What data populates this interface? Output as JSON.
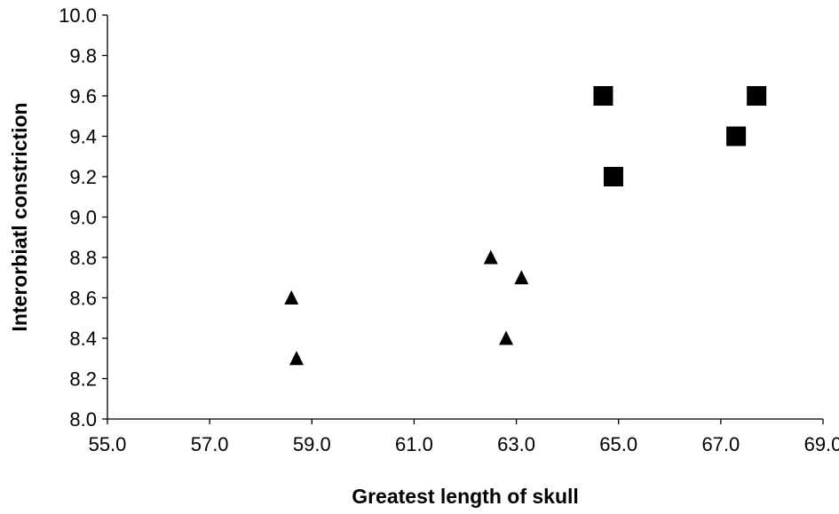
{
  "chart_data": {
    "type": "scatter",
    "xlabel": "Greatest length of skull",
    "ylabel": "Interorbiatl constriction",
    "xlim": [
      55.0,
      69.0
    ],
    "ylim": [
      8.0,
      10.0
    ],
    "x_ticks": [
      "55.0",
      "57.0",
      "59.0",
      "61.0",
      "63.0",
      "65.0",
      "67.0",
      "69.0"
    ],
    "y_ticks": [
      "8.0",
      "8.2",
      "8.4",
      "8.6",
      "8.8",
      "9.0",
      "9.2",
      "9.4",
      "9.6",
      "9.8",
      "10.0"
    ],
    "grid": false,
    "series": [
      {
        "marker": "triangle",
        "color": "#000000",
        "points": [
          {
            "x": 58.6,
            "y": 8.6
          },
          {
            "x": 58.7,
            "y": 8.3
          },
          {
            "x": 62.5,
            "y": 8.8
          },
          {
            "x": 63.1,
            "y": 8.7
          },
          {
            "x": 62.8,
            "y": 8.4
          }
        ]
      },
      {
        "marker": "square",
        "color": "#000000",
        "points": [
          {
            "x": 64.7,
            "y": 9.6
          },
          {
            "x": 64.9,
            "y": 9.2
          },
          {
            "x": 67.3,
            "y": 9.4
          },
          {
            "x": 67.7,
            "y": 9.6
          }
        ]
      }
    ]
  }
}
